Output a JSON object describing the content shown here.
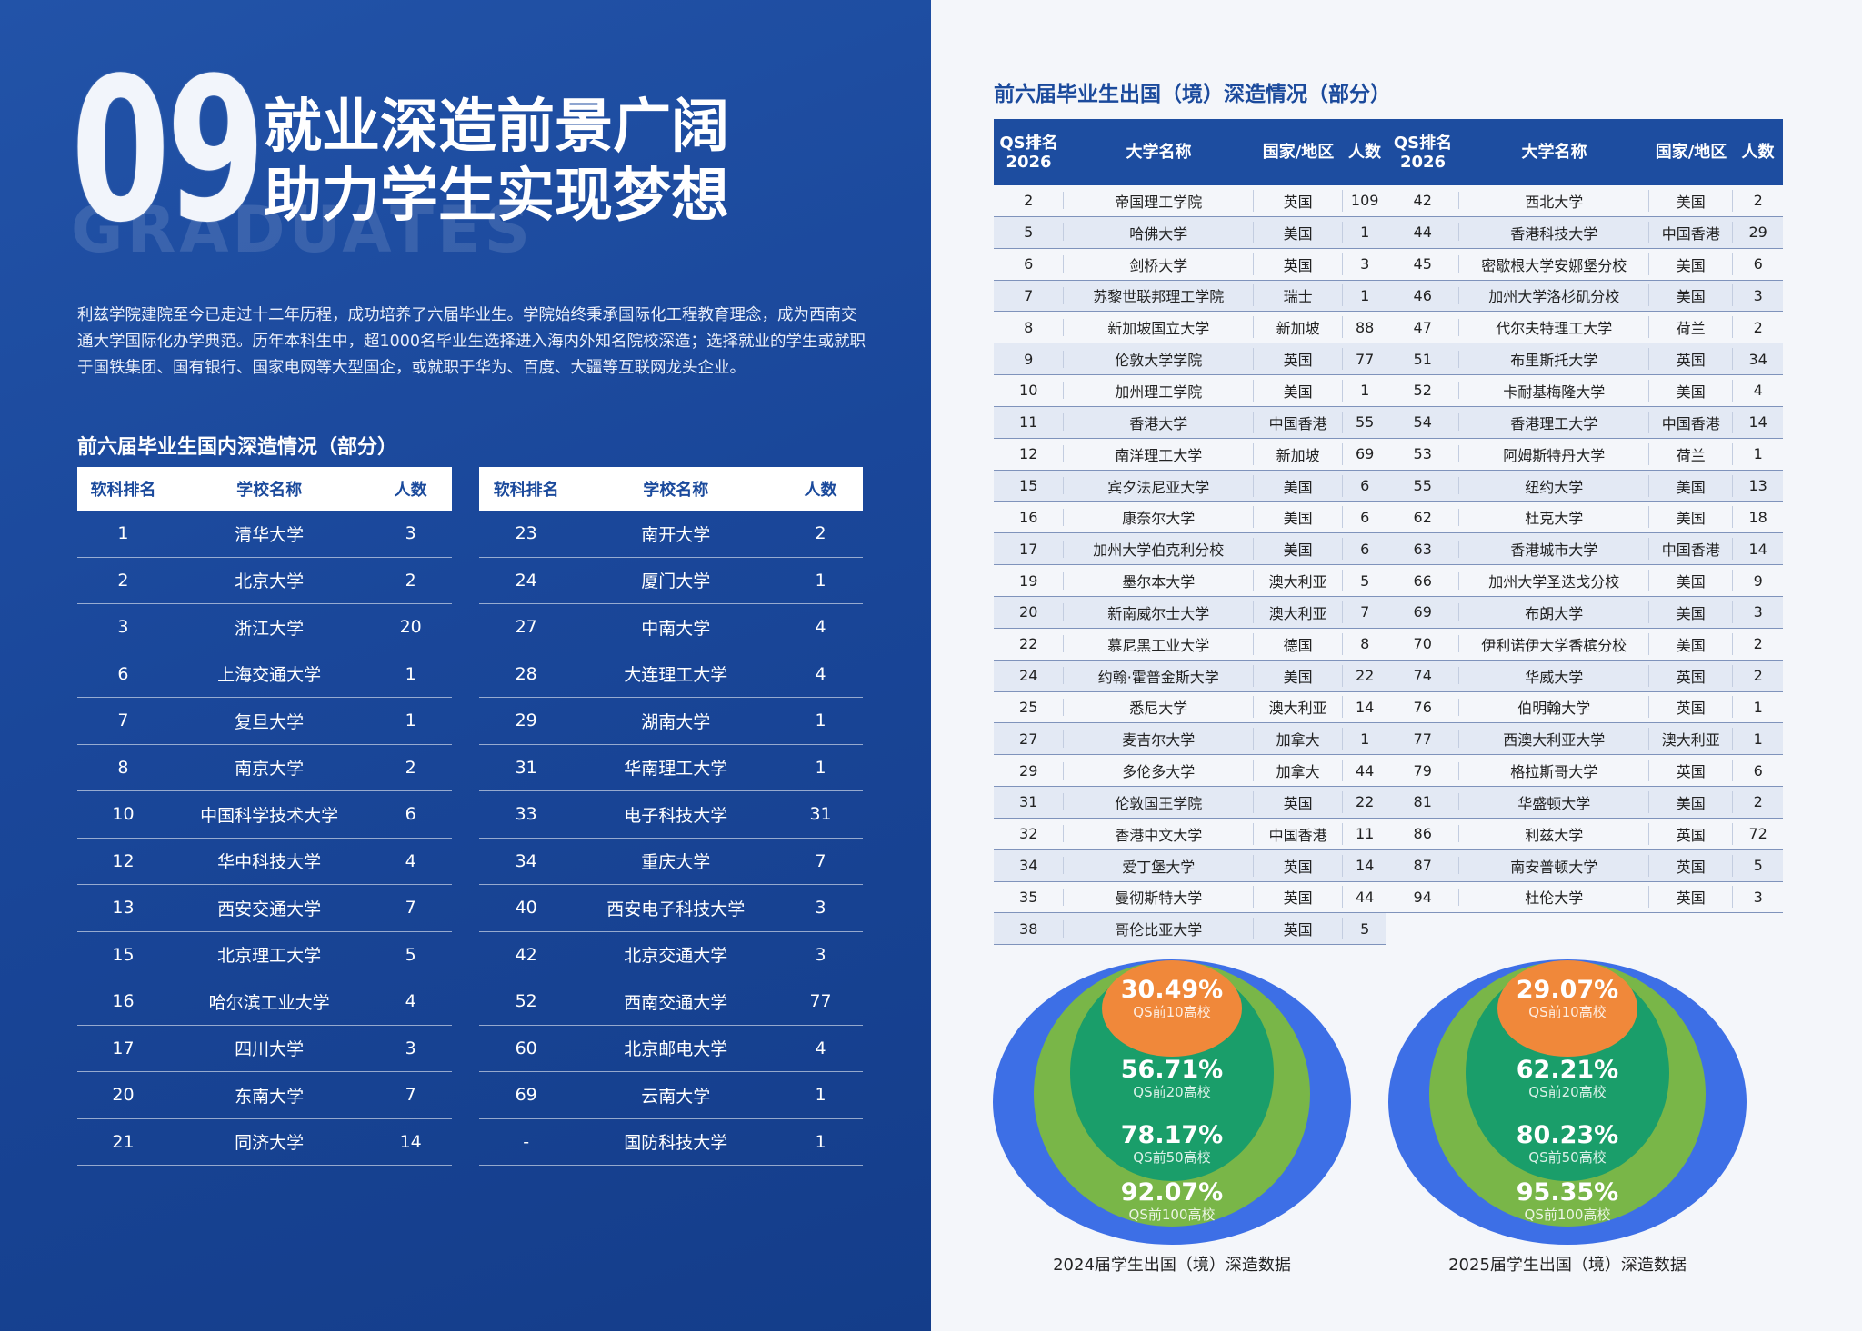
{
  "header": {
    "number": "09",
    "title": [
      "就业深造前景广阔",
      "助力学生实现梦想"
    ],
    "watermark": "GRADUATES"
  },
  "intro": "利兹学院建院至今已走过十二年历程，成功培养了六届毕业生。学院始终秉承国际化工程教育理念，成为西南交通大学国际化办学典范。历年本科生中，超1000名毕业生选择进入海内外知名院校深造；选择就业的学生或就职于国铁集团、国有银行、国家电网等大型国企，或就职于华为、百度、大疆等互联网龙头企业。",
  "domestic": {
    "title": "前六届毕业生国内深造情况（部分）",
    "headers": [
      "软科排名",
      "学校名称",
      "人数"
    ],
    "left": [
      [
        1,
        "清华大学",
        3
      ],
      [
        2,
        "北京大学",
        2
      ],
      [
        3,
        "浙江大学",
        20
      ],
      [
        6,
        "上海交通大学",
        1
      ],
      [
        7,
        "复旦大学",
        1
      ],
      [
        8,
        "南京大学",
        2
      ],
      [
        10,
        "中国科学技术大学",
        6
      ],
      [
        12,
        "华中科技大学",
        4
      ],
      [
        13,
        "西安交通大学",
        7
      ],
      [
        15,
        "北京理工大学",
        5
      ],
      [
        16,
        "哈尔滨工业大学",
        4
      ],
      [
        17,
        "四川大学",
        3
      ],
      [
        20,
        "东南大学",
        7
      ],
      [
        21,
        "同济大学",
        14
      ]
    ],
    "right": [
      [
        23,
        "南开大学",
        2
      ],
      [
        24,
        "厦门大学",
        1
      ],
      [
        27,
        "中南大学",
        4
      ],
      [
        28,
        "大连理工大学",
        4
      ],
      [
        29,
        "湖南大学",
        1
      ],
      [
        31,
        "华南理工大学",
        1
      ],
      [
        33,
        "电子科技大学",
        31
      ],
      [
        34,
        "重庆大学",
        7
      ],
      [
        40,
        "西安电子科技大学",
        3
      ],
      [
        42,
        "北京交通大学",
        3
      ],
      [
        52,
        "西南交通大学",
        77
      ],
      [
        60,
        "北京邮电大学",
        4
      ],
      [
        69,
        "云南大学",
        1
      ],
      [
        "-",
        "国防科技大学",
        1
      ]
    ]
  },
  "abroad": {
    "title": "前六届毕业生出国（境）深造情况（部分）",
    "headers": [
      "QS排名\n2026",
      "大学名称",
      "国家/地区",
      "人数"
    ],
    "left": [
      [
        2,
        "帝国理工学院",
        "英国",
        109
      ],
      [
        5,
        "哈佛大学",
        "美国",
        1
      ],
      [
        6,
        "剑桥大学",
        "英国",
        3
      ],
      [
        7,
        "苏黎世联邦理工学院",
        "瑞士",
        1
      ],
      [
        8,
        "新加坡国立大学",
        "新加坡",
        88
      ],
      [
        9,
        "伦敦大学学院",
        "英国",
        77
      ],
      [
        10,
        "加州理工学院",
        "美国",
        1
      ],
      [
        11,
        "香港大学",
        "中国香港",
        55
      ],
      [
        12,
        "南洋理工大学",
        "新加坡",
        69
      ],
      [
        15,
        "宾夕法尼亚大学",
        "美国",
        6
      ],
      [
        16,
        "康奈尔大学",
        "美国",
        6
      ],
      [
        17,
        "加州大学伯克利分校",
        "美国",
        6
      ],
      [
        19,
        "墨尔本大学",
        "澳大利亚",
        5
      ],
      [
        20,
        "新南威尔士大学",
        "澳大利亚",
        7
      ],
      [
        22,
        "慕尼黑工业大学",
        "德国",
        8
      ],
      [
        24,
        "约翰·霍普金斯大学",
        "美国",
        22
      ],
      [
        25,
        "悉尼大学",
        "澳大利亚",
        14
      ],
      [
        27,
        "麦吉尔大学",
        "加拿大",
        1
      ],
      [
        29,
        "多伦多大学",
        "加拿大",
        44
      ],
      [
        31,
        "伦敦国王学院",
        "英国",
        22
      ],
      [
        32,
        "香港中文大学",
        "中国香港",
        11
      ],
      [
        34,
        "爱丁堡大学",
        "英国",
        14
      ],
      [
        35,
        "曼彻斯特大学",
        "英国",
        44
      ],
      [
        38,
        "哥伦比亚大学",
        "英国",
        5
      ]
    ],
    "right": [
      [
        42,
        "西北大学",
        "美国",
        2
      ],
      [
        44,
        "香港科技大学",
        "中国香港",
        29
      ],
      [
        45,
        "密歇根大学安娜堡分校",
        "美国",
        6
      ],
      [
        46,
        "加州大学洛杉矶分校",
        "美国",
        3
      ],
      [
        47,
        "代尔夫特理工大学",
        "荷兰",
        2
      ],
      [
        51,
        "布里斯托大学",
        "英国",
        34
      ],
      [
        52,
        "卡耐基梅隆大学",
        "美国",
        4
      ],
      [
        54,
        "香港理工大学",
        "中国香港",
        14
      ],
      [
        53,
        "阿姆斯特丹大学",
        "荷兰",
        1
      ],
      [
        55,
        "纽约大学",
        "美国",
        13
      ],
      [
        62,
        "杜克大学",
        "美国",
        18
      ],
      [
        63,
        "香港城市大学",
        "中国香港",
        14
      ],
      [
        66,
        "加州大学圣迭戈分校",
        "美国",
        9
      ],
      [
        69,
        "布朗大学",
        "美国",
        3
      ],
      [
        70,
        "伊利诺伊大学香槟分校",
        "美国",
        2
      ],
      [
        74,
        "华威大学",
        "英国",
        2
      ],
      [
        76,
        "伯明翰大学",
        "英国",
        1
      ],
      [
        77,
        "西澳大利亚大学",
        "澳大利亚",
        1
      ],
      [
        79,
        "格拉斯哥大学",
        "英国",
        6
      ],
      [
        81,
        "华盛顿大学",
        "美国",
        2
      ],
      [
        86,
        "利兹大学",
        "英国",
        72
      ],
      [
        87,
        "南安普顿大学",
        "英国",
        5
      ],
      [
        94,
        "杜伦大学",
        "英国",
        3
      ]
    ]
  },
  "rings": [
    {
      "caption": "2024届学生出国（境）深造数据",
      "levels": [
        {
          "value": "30.49%",
          "label": "QS前10高校"
        },
        {
          "value": "56.71%",
          "label": "QS前20高校"
        },
        {
          "value": "78.17%",
          "label": "QS前50高校"
        },
        {
          "value": "92.07%",
          "label": "QS前100高校"
        }
      ]
    },
    {
      "caption": "2025届学生出国（境）深造数据",
      "levels": [
        {
          "value": "29.07%",
          "label": "QS前10高校"
        },
        {
          "value": "62.21%",
          "label": "QS前20高校"
        },
        {
          "value": "80.23%",
          "label": "QS前50高校"
        },
        {
          "value": "95.35%",
          "label": "QS前100高校"
        }
      ]
    }
  ]
}
